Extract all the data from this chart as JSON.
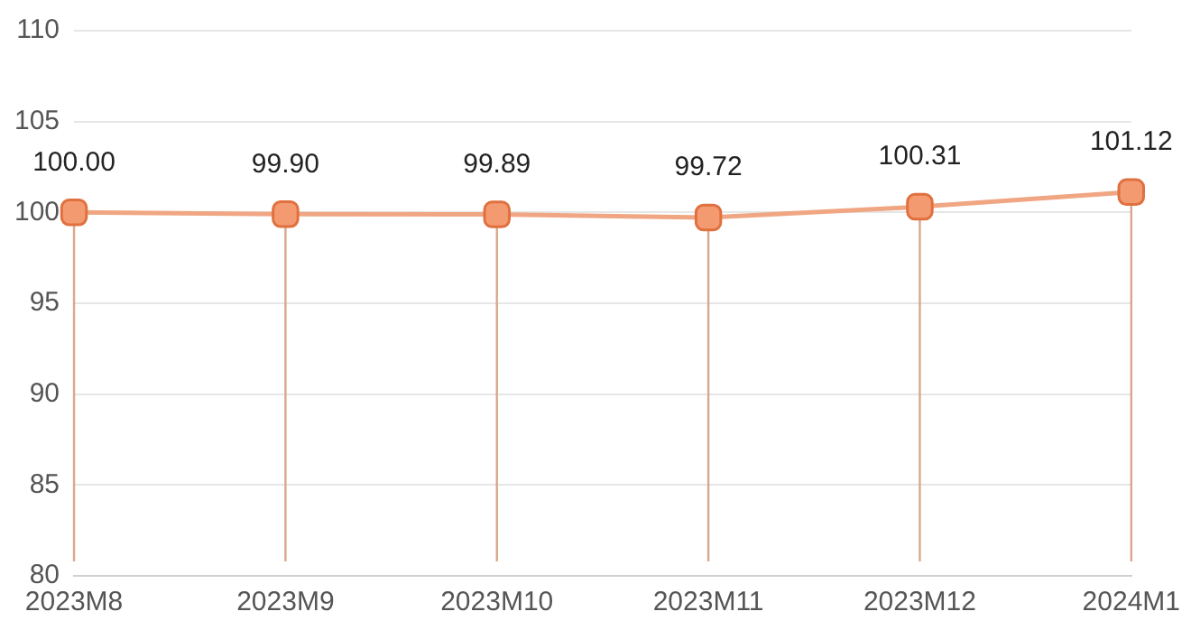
{
  "chart_data": {
    "type": "line",
    "categories": [
      "2023M8",
      "2023M9",
      "2023M10",
      "2023M11",
      "2023M12",
      "2024M1"
    ],
    "series": [
      {
        "color": "#f0a683",
        "values": [
          100.0,
          99.9,
          99.89,
          99.72,
          100.31,
          101.12
        ]
      }
    ],
    "value_labels": [
      "100.00",
      "99.90",
      "99.89",
      "99.72",
      "100.31",
      "101.12"
    ],
    "ylim": [
      80,
      110
    ],
    "yticks": [
      80,
      85,
      90,
      95,
      100,
      105,
      110
    ],
    "grid": "y",
    "marker": "square",
    "legend": false
  }
}
